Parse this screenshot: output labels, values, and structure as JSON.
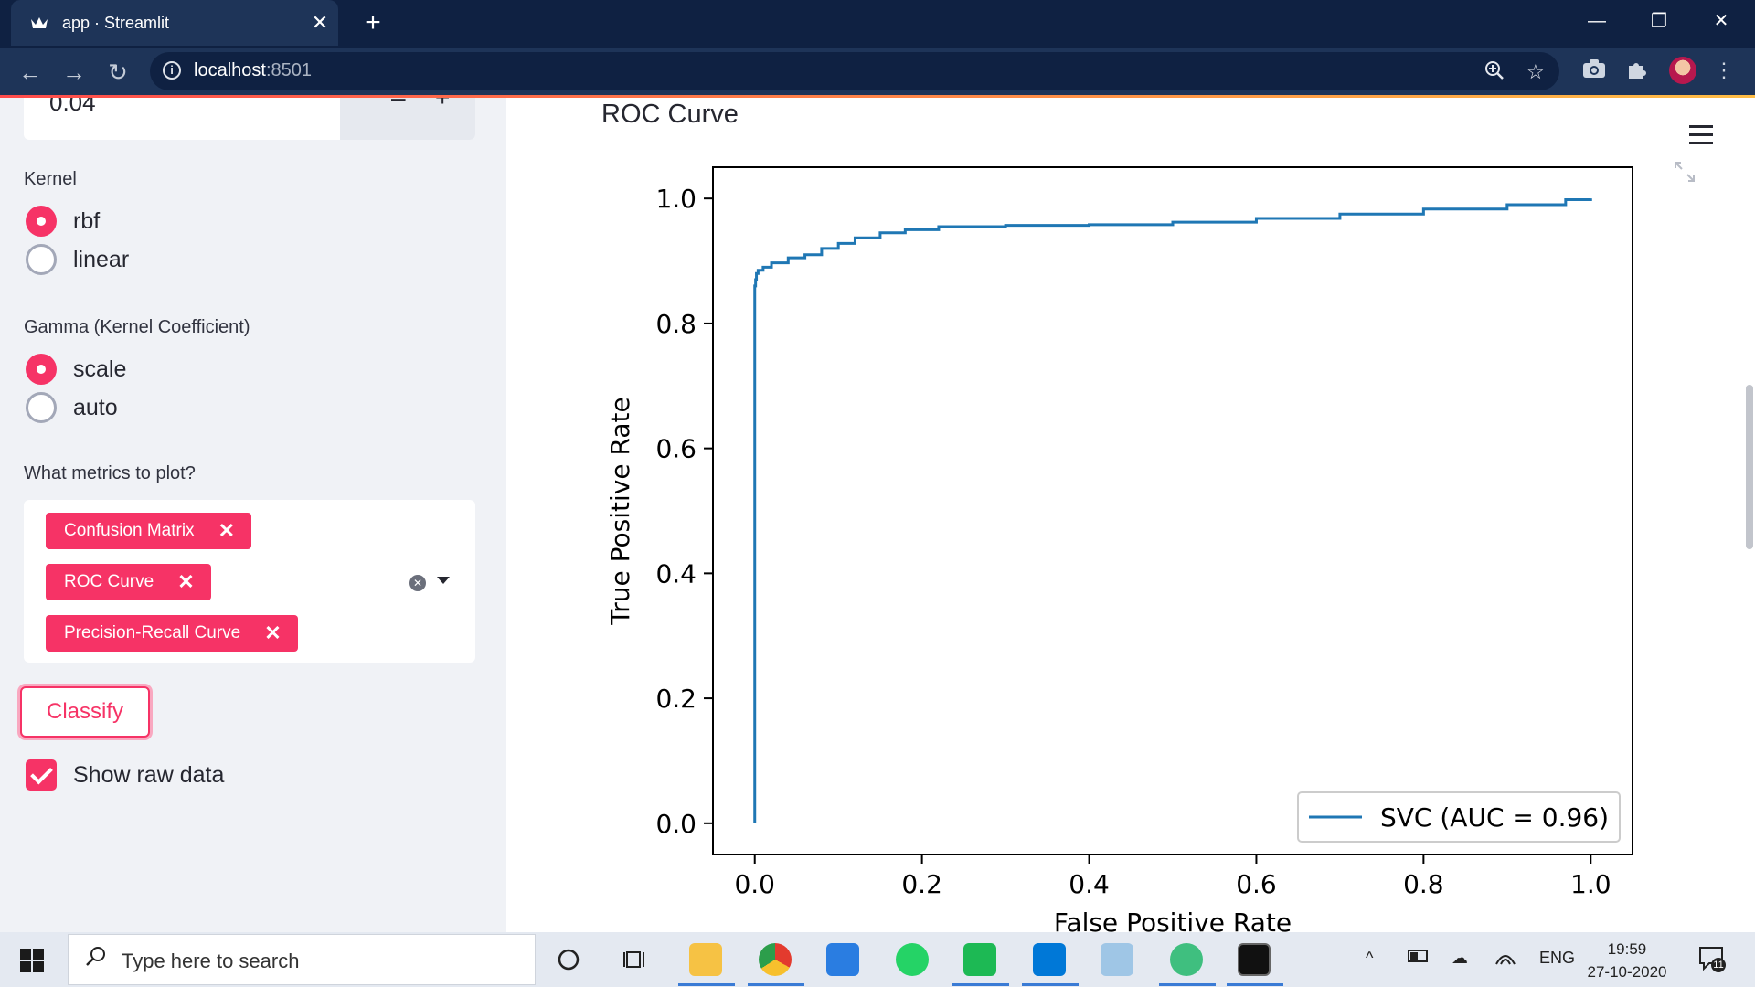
{
  "browser": {
    "tab_title": "app · Streamlit",
    "url_host": "localhost",
    "url_port": ":8501"
  },
  "sidebar": {
    "c_value": "0.04",
    "kernel_label": "Kernel",
    "kernel_options": [
      "rbf",
      "linear"
    ],
    "kernel_selected": "rbf",
    "gamma_label": "Gamma (Kernel Coefficient)",
    "gamma_options": [
      "scale",
      "auto"
    ],
    "gamma_selected": "scale",
    "metrics_label": "What metrics to plot?",
    "metrics_selected": [
      "Confusion Matrix",
      "ROC Curve",
      "Precision-Recall Curve"
    ],
    "classify_label": "Classify",
    "show_raw_label": "Show raw data",
    "show_raw_checked": true
  },
  "main": {
    "heading": "ROC Curve"
  },
  "chart_data": {
    "type": "line",
    "xlabel": "False Positive Rate",
    "ylabel": "True Positive Rate",
    "xlim": [
      -0.05,
      1.05
    ],
    "ylim": [
      -0.05,
      1.05
    ],
    "xticks": [
      "0.0",
      "0.2",
      "0.4",
      "0.6",
      "0.8",
      "1.0"
    ],
    "yticks": [
      "0.0",
      "0.2",
      "0.4",
      "0.6",
      "0.8",
      "1.0"
    ],
    "legend_placement": "lower-right",
    "series": [
      {
        "name": "SVC (AUC = 0.96)",
        "color": "#1f77b4",
        "x": [
          0.0,
          0.0,
          0.0,
          0.001,
          0.002,
          0.004,
          0.01,
          0.02,
          0.04,
          0.06,
          0.08,
          0.1,
          0.12,
          0.15,
          0.18,
          0.22,
          0.3,
          0.4,
          0.5,
          0.6,
          0.7,
          0.8,
          0.9,
          0.97,
          1.0
        ],
        "y": [
          0.0,
          0.81,
          0.86,
          0.87,
          0.88,
          0.885,
          0.89,
          0.897,
          0.905,
          0.91,
          0.92,
          0.928,
          0.937,
          0.945,
          0.95,
          0.955,
          0.957,
          0.958,
          0.962,
          0.968,
          0.975,
          0.983,
          0.99,
          0.998,
          1.0
        ]
      }
    ]
  },
  "taskbar": {
    "search_placeholder": "Type here to search",
    "time": "19:59",
    "date": "27-10-2020",
    "lang": "ENG",
    "notif_count": "11"
  },
  "colors": {
    "accent": "#f63366",
    "chrome_dark": "#0f2142",
    "chrome_toolbar": "#1e3458",
    "sidebar_bg": "#f0f2f6",
    "line": "#1f77b4"
  }
}
